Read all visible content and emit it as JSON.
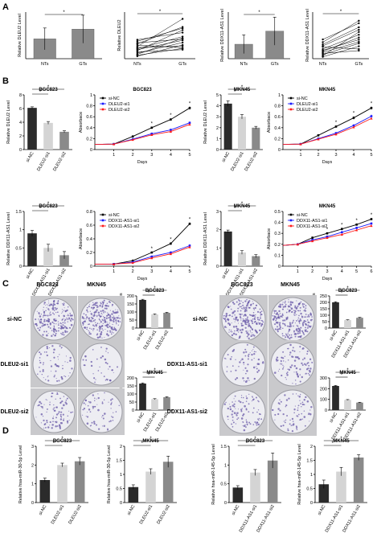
{
  "panels": {
    "A": "A",
    "B": "B",
    "C": "C",
    "D": "D"
  },
  "colors": {
    "dark": "#2b2b2b",
    "mid": "#8a8a8a",
    "light": "#d4d4d4",
    "si_nc": "#000000",
    "si1": "#1a1aff",
    "si2": "#ff1a1a",
    "plate_bg": "#ededf2",
    "colony": "#6a5aa8"
  },
  "c_labels": {
    "left_cols": [
      "BGC823",
      "MKN45"
    ],
    "left_rows": [
      "si-NC",
      "DLEU2-si1",
      "DLEU2-si2"
    ],
    "right_cols": [
      "BGC823",
      "MKN45"
    ],
    "right_rows": [
      "si-NC",
      "DDX11-AS1-si1",
      "DDX11-AS1-si2"
    ]
  },
  "chart_data": [
    {
      "id": "a1",
      "type": "bar",
      "panel": "A",
      "ylabel": "Relative DLEU2 Level",
      "categories": [
        "NTs",
        "GTs"
      ],
      "values": [
        5.1,
        7.6
      ],
      "errors": [
        2.8,
        3.6
      ],
      "ylim": [
        0,
        12
      ],
      "sig": [
        {
          "from": 0,
          "to": 1,
          "label": "*"
        }
      ]
    },
    {
      "id": "a2",
      "type": "line",
      "panel": "A",
      "ylabel": "Relative DLEU2",
      "categories": [
        "NTs",
        "GTs"
      ],
      "ylim": [
        0,
        15
      ],
      "pairs": [
        [
          3.2,
          7.1
        ],
        [
          1.8,
          5.2
        ],
        [
          4.4,
          3.5
        ],
        [
          2.6,
          9.2
        ],
        [
          5.1,
          6.3
        ],
        [
          0.8,
          4.4
        ],
        [
          3.9,
          12.8
        ],
        [
          2.2,
          2.9
        ],
        [
          6.1,
          8.4
        ],
        [
          1.4,
          6.6
        ],
        [
          4.8,
          10.2
        ],
        [
          2.9,
          5.9
        ],
        [
          3.6,
          4.1
        ],
        [
          5.6,
          9.8
        ],
        [
          1.1,
          3.3
        ]
      ],
      "sig": [
        {
          "from": 0,
          "to": 1,
          "label": "*"
        }
      ]
    },
    {
      "id": "a3",
      "type": "bar",
      "panel": "A",
      "ylabel": "Relative DDX11-AS1 Level",
      "categories": [
        "NTs",
        "GTs"
      ],
      "values": [
        3.1,
        5.9
      ],
      "errors": [
        2.0,
        3.0
      ],
      "ylim": [
        0,
        10
      ],
      "sig": [
        {
          "from": 0,
          "to": 1,
          "label": "*"
        }
      ]
    },
    {
      "id": "a4",
      "type": "line",
      "panel": "A",
      "ylabel": "Relative DDX11-AS1 Level",
      "categories": [
        "NTs",
        "GTs"
      ],
      "ylim": [
        0,
        15
      ],
      "pairs": [
        [
          2.4,
          6.8
        ],
        [
          1.3,
          4.9
        ],
        [
          3.8,
          3.1
        ],
        [
          0.9,
          8.6
        ],
        [
          4.6,
          10.1
        ],
        [
          2.0,
          5.4
        ],
        [
          5.3,
          12.2
        ],
        [
          1.7,
          2.6
        ],
        [
          3.1,
          7.7
        ],
        [
          0.6,
          4.0
        ],
        [
          4.1,
          9.3
        ],
        [
          2.7,
          6.1
        ],
        [
          6.2,
          11.4
        ]
      ],
      "sig": [
        {
          "from": 0,
          "to": 1,
          "label": "*"
        }
      ]
    },
    {
      "id": "b1",
      "type": "bar",
      "panel": "B",
      "title": "BGC823",
      "ylabel": "Relative DLEU2  Level",
      "categories": [
        "si-NC",
        "DLEU2-si1",
        "DLEU2-si2"
      ],
      "values": [
        6.1,
        3.9,
        2.6
      ],
      "errors": [
        0.15,
        0.2,
        0.15
      ],
      "ylim": [
        0,
        8
      ],
      "yticks": [
        0,
        2,
        4,
        6,
        8
      ],
      "sig": [
        {
          "from": 0,
          "to": 1,
          "label": "*"
        },
        {
          "from": 0,
          "to": 2,
          "label": "*"
        }
      ]
    },
    {
      "id": "b2",
      "type": "line",
      "panel": "B",
      "title": "BGC823",
      "ylabel": "Absorbace",
      "xlabel": "Days",
      "x": [
        1,
        2,
        3,
        4,
        5
      ],
      "xlim": [
        0,
        5
      ],
      "ylim": [
        0,
        1.0
      ],
      "yticks": [
        0,
        0.2,
        0.4,
        0.6,
        0.8,
        1.0
      ],
      "series": [
        {
          "name": "si-NC",
          "values": [
            0.1,
            0.24,
            0.4,
            0.55,
            0.76
          ],
          "errors": [
            0.01,
            0.01,
            0.02,
            0.02,
            0.03
          ]
        },
        {
          "name": "DLEU2-si1",
          "values": [
            0.1,
            0.19,
            0.29,
            0.36,
            0.49
          ],
          "errors": [
            0.01,
            0.01,
            0.02,
            0.02,
            0.02
          ]
        },
        {
          "name": "DLEU2-si2",
          "values": [
            0.1,
            0.18,
            0.27,
            0.33,
            0.46
          ],
          "errors": [
            0.01,
            0.01,
            0.02,
            0.02,
            0.02
          ]
        }
      ],
      "stars_at": [
        3,
        4,
        5
      ]
    },
    {
      "id": "b3",
      "type": "bar",
      "panel": "B",
      "title": "MKN45",
      "ylabel": "Relative DLEU2 Level",
      "categories": [
        "si-NC",
        "DLEU2-si1",
        "DLEU2-si2"
      ],
      "values": [
        4.2,
        3.0,
        2.0
      ],
      "errors": [
        0.25,
        0.2,
        0.12
      ],
      "ylim": [
        0,
        5
      ],
      "yticks": [
        0,
        1,
        2,
        3,
        4,
        5
      ],
      "sig": [
        {
          "from": 0,
          "to": 1,
          "label": "*"
        },
        {
          "from": 0,
          "to": 2,
          "label": "*"
        }
      ]
    },
    {
      "id": "b4",
      "type": "line",
      "panel": "B",
      "title": "MKN45",
      "ylabel": "Absorbace",
      "xlabel": "Days",
      "x": [
        1,
        2,
        3,
        4,
        5
      ],
      "xlim": [
        0,
        5
      ],
      "ylim": [
        0,
        1.0
      ],
      "yticks": [
        0,
        0.2,
        0.4,
        0.6,
        0.8,
        1.0
      ],
      "series": [
        {
          "name": "si-NC",
          "values": [
            0.1,
            0.26,
            0.42,
            0.58,
            0.76
          ],
          "errors": [
            0.01,
            0.02,
            0.02,
            0.03,
            0.03
          ]
        },
        {
          "name": "DLEU2-si1",
          "values": [
            0.1,
            0.2,
            0.3,
            0.44,
            0.61
          ],
          "errors": [
            0.01,
            0.01,
            0.02,
            0.02,
            0.03
          ]
        },
        {
          "name": "DLEU2-si2",
          "values": [
            0.1,
            0.19,
            0.28,
            0.41,
            0.57
          ],
          "errors": [
            0.01,
            0.01,
            0.02,
            0.02,
            0.02
          ]
        }
      ],
      "stars_at": [
        3,
        4,
        5
      ]
    },
    {
      "id": "b5",
      "type": "bar",
      "panel": "B",
      "title": "BGC823",
      "ylabel": "Relative DDX11-AS1 Level",
      "categories": [
        "si-NC",
        "DDX11-AS1-si1",
        "DDX11-AS1-si2"
      ],
      "values": [
        0.9,
        0.5,
        0.3
      ],
      "errors": [
        0.08,
        0.1,
        0.1
      ],
      "ylim": [
        0,
        1.5
      ],
      "yticks": [
        0,
        0.5,
        1.0,
        1.5
      ],
      "sig": [
        {
          "from": 0,
          "to": 1,
          "label": "*"
        },
        {
          "from": 0,
          "to": 2,
          "label": "*"
        }
      ]
    },
    {
      "id": "b6",
      "type": "line",
      "panel": "B",
      "ylabel": "Absorbace",
      "xlabel": "Days",
      "x": [
        1,
        2,
        3,
        4,
        5
      ],
      "xlim": [
        0,
        5
      ],
      "ylim": [
        0,
        0.8
      ],
      "yticks": [
        0,
        0.2,
        0.4,
        0.6,
        0.8
      ],
      "series": [
        {
          "name": "si-NC",
          "values": [
            0.03,
            0.08,
            0.2,
            0.33,
            0.62
          ],
          "errors": [
            0.005,
            0.01,
            0.01,
            0.02,
            0.02
          ]
        },
        {
          "name": "DDX11-AS1-si1",
          "values": [
            0.03,
            0.06,
            0.14,
            0.2,
            0.3
          ],
          "errors": [
            0.005,
            0.01,
            0.01,
            0.01,
            0.02
          ]
        },
        {
          "name": "DDX11-AS1-si2",
          "values": [
            0.03,
            0.05,
            0.12,
            0.18,
            0.28
          ],
          "errors": [
            0.005,
            0.01,
            0.01,
            0.01,
            0.02
          ]
        }
      ],
      "stars_at": [
        3,
        4,
        5
      ]
    },
    {
      "id": "b7",
      "type": "bar",
      "panel": "B",
      "title": "MKN45",
      "ylabel": "Relative DDX11-AS1 Level",
      "categories": [
        "si-NC",
        "DDX11-AS1-si1",
        "DDX11-AS1-si2"
      ],
      "values": [
        1.9,
        0.75,
        0.55
      ],
      "errors": [
        0.08,
        0.1,
        0.08
      ],
      "ylim": [
        0,
        3
      ],
      "yticks": [
        0,
        1,
        2,
        3
      ],
      "sig": [
        {
          "from": 0,
          "to": 1,
          "label": "*"
        },
        {
          "from": 0,
          "to": 2,
          "label": "*"
        }
      ]
    },
    {
      "id": "b8",
      "type": "line",
      "panel": "B",
      "title": "MKN45",
      "ylabel": "Absorbace",
      "xlabel": "Days",
      "x": [
        1,
        2,
        3,
        4,
        5,
        6
      ],
      "xlim": [
        0,
        6
      ],
      "ylim": [
        0,
        0.5
      ],
      "yticks": [
        0,
        0.1,
        0.2,
        0.3,
        0.4,
        0.5
      ],
      "series": [
        {
          "name": "si-NC",
          "values": [
            0.2,
            0.26,
            0.3,
            0.34,
            0.38,
            0.43
          ],
          "errors": [
            0.01,
            0.01,
            0.01,
            0.01,
            0.01,
            0.01
          ]
        },
        {
          "name": "DDX11-AS1-si1",
          "values": [
            0.2,
            0.24,
            0.27,
            0.31,
            0.35,
            0.39
          ],
          "errors": [
            0.01,
            0.01,
            0.01,
            0.01,
            0.01,
            0.01
          ]
        },
        {
          "name": "DDX11-AS1-si2",
          "values": [
            0.2,
            0.23,
            0.26,
            0.29,
            0.33,
            0.37
          ],
          "errors": [
            0.01,
            0.01,
            0.01,
            0.01,
            0.01,
            0.01
          ]
        }
      ],
      "stars_at": [
        3,
        4,
        5,
        6
      ]
    },
    {
      "id": "c1",
      "type": "bar",
      "panel": "C",
      "title": "BGC823",
      "ylabel": "Number of colonies",
      "categories": [
        "si-NC",
        "DLEU2-si1",
        "DLEU2-si2"
      ],
      "values": [
        175,
        85,
        95
      ],
      "errors": [
        4,
        3,
        3
      ],
      "ylim": [
        0,
        200
      ],
      "yticks": [
        0,
        50,
        100,
        150,
        200
      ],
      "sig": [
        {
          "from": 0,
          "to": 1,
          "label": "*"
        },
        {
          "from": 0,
          "to": 2,
          "label": "*"
        }
      ]
    },
    {
      "id": "c2",
      "type": "bar",
      "panel": "C",
      "title": "MKN45",
      "ylabel": "Number of colonies",
      "categories": [
        "si-NC",
        "DLEU2-si1",
        "DLEU2-si2"
      ],
      "values": [
        165,
        68,
        80
      ],
      "errors": [
        4,
        3,
        3
      ],
      "ylim": [
        0,
        200
      ],
      "yticks": [
        0,
        50,
        100,
        150,
        200
      ],
      "sig": [
        {
          "from": 0,
          "to": 1,
          "label": "*"
        },
        {
          "from": 0,
          "to": 2,
          "label": "*"
        }
      ]
    },
    {
      "id": "c3",
      "type": "bar",
      "panel": "C",
      "title": "BGC823",
      "ylabel": "Number of colonies",
      "categories": [
        "si-NC",
        "DDX11-AS1-si1",
        "DDX11-AS1-si2"
      ],
      "values": [
        200,
        62,
        80
      ],
      "errors": [
        5,
        3,
        3
      ],
      "ylim": [
        0,
        250
      ],
      "yticks": [
        0,
        50,
        100,
        150,
        200,
        250
      ],
      "sig": [
        {
          "from": 0,
          "to": 1,
          "label": "*"
        },
        {
          "from": 0,
          "to": 2,
          "label": "*"
        }
      ]
    },
    {
      "id": "c4",
      "type": "bar",
      "panel": "C",
      "title": "MKN45",
      "ylabel": "Number of colonies",
      "categories": [
        "si-NC",
        "DDX11-AS1-si1",
        "DDX11-AS1-si2"
      ],
      "values": [
        225,
        95,
        70
      ],
      "errors": [
        5,
        3,
        3
      ],
      "ylim": [
        0,
        300
      ],
      "yticks": [
        0,
        100,
        200,
        300
      ],
      "sig": [
        {
          "from": 0,
          "to": 1,
          "label": "*"
        },
        {
          "from": 0,
          "to": 2,
          "label": "*"
        }
      ]
    },
    {
      "id": "d1",
      "type": "bar",
      "panel": "D",
      "title": "BGC823",
      "ylabel": "Relative hsa-miR-30-5p  Level",
      "categories": [
        "si-NC",
        "DLEU2-si1",
        "DLEU2-si2"
      ],
      "values": [
        1.2,
        2.0,
        2.2
      ],
      "errors": [
        0.1,
        0.1,
        0.2
      ],
      "ylim": [
        0,
        3
      ],
      "yticks": [
        0,
        1,
        2,
        3
      ],
      "sig": [
        {
          "from": 0,
          "to": 1,
          "label": "*"
        },
        {
          "from": 0,
          "to": 2,
          "label": "*"
        }
      ]
    },
    {
      "id": "d2",
      "type": "bar",
      "panel": "D",
      "title": "MKN45",
      "ylabel": "Relative hsa-miR-30-5p Level",
      "categories": [
        "si-NC",
        "DLEU2-si1",
        "DLEU2-si2"
      ],
      "values": [
        0.55,
        1.1,
        1.45
      ],
      "errors": [
        0.08,
        0.1,
        0.2
      ],
      "ylim": [
        0,
        2
      ],
      "yticks": [
        0,
        0.5,
        1.0,
        1.5,
        2.0
      ],
      "sig": [
        {
          "from": 0,
          "to": 1,
          "label": "*"
        },
        {
          "from": 0,
          "to": 2,
          "label": "*"
        }
      ]
    },
    {
      "id": "d3",
      "type": "bar",
      "panel": "D",
      "title": "BGC823",
      "ylabel": "Relative hsa-miR-145-5p  Level",
      "categories": [
        "si-NC",
        "DDX11-AS1-si1",
        "DDX11-AS1-si2"
      ],
      "values": [
        0.4,
        0.8,
        1.12
      ],
      "errors": [
        0.05,
        0.08,
        0.2
      ],
      "ylim": [
        0,
        1.5
      ],
      "yticks": [
        0,
        0.5,
        1.0,
        1.5
      ],
      "sig": [
        {
          "from": 0,
          "to": 1,
          "label": "*"
        },
        {
          "from": 0,
          "to": 2,
          "label": "*"
        }
      ]
    },
    {
      "id": "d4",
      "type": "bar",
      "panel": "D",
      "title": "MKN45",
      "ylabel": "Relative hsa-miR-145-5p Level",
      "categories": [
        "si-NC",
        "DDX11-AS1-si1",
        "DDX11-AS1-si2"
      ],
      "values": [
        0.65,
        1.1,
        1.6
      ],
      "errors": [
        0.15,
        0.15,
        0.1
      ],
      "ylim": [
        0,
        2
      ],
      "yticks": [
        0,
        0.5,
        1.0,
        1.5,
        2.0
      ],
      "sig": [
        {
          "from": 0,
          "to": 1,
          "label": "*"
        },
        {
          "from": 0,
          "to": 2,
          "label": "*"
        }
      ]
    }
  ]
}
